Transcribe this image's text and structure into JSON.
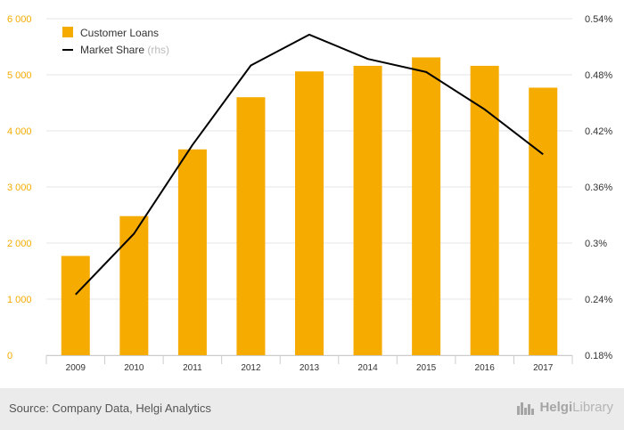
{
  "chart_data": {
    "type": "bar",
    "categories": [
      "2009",
      "2010",
      "2011",
      "2012",
      "2013",
      "2014",
      "2015",
      "2016",
      "2017"
    ],
    "series": [
      {
        "name": "Customer Loans",
        "type": "bar",
        "axis": "left",
        "color": "#f5ab00",
        "values": [
          1770,
          2480,
          3670,
          4600,
          5060,
          5160,
          5310,
          5160,
          4770
        ]
      },
      {
        "name": "Market Share",
        "type": "line",
        "axis": "right",
        "color": "#000000",
        "values": [
          0.245,
          0.31,
          0.405,
          0.49,
          0.523,
          0.497,
          0.483,
          0.443,
          0.395
        ]
      }
    ],
    "legend": {
      "items": [
        "Customer Loans",
        "Market Share"
      ],
      "market_share_suffix": "(rhs)",
      "placement": "top-left"
    },
    "y_left": {
      "min": 0,
      "max": 6000,
      "ticks": [
        0,
        1000,
        2000,
        3000,
        4000,
        5000,
        6000
      ],
      "tick_labels": [
        "0",
        "1 000",
        "2 000",
        "3 000",
        "4 000",
        "5 000",
        "6 000"
      ]
    },
    "y_right": {
      "min": 0.18,
      "max": 0.54,
      "ticks": [
        0.18,
        0.24,
        0.3,
        0.36,
        0.42,
        0.48,
        0.54
      ],
      "tick_labels": [
        "0.18%",
        "0.24%",
        "0.3%",
        "0.36%",
        "0.42%",
        "0.48%",
        "0.54%"
      ]
    },
    "grid": true,
    "title": "",
    "xlabel": "",
    "ylabel": ""
  },
  "footer": {
    "source": "Source: Company Data, Helgi Analytics",
    "brand_bold": "Helgi",
    "brand_light": "Library"
  },
  "colors": {
    "bar": "#f5ab00",
    "line": "#000000",
    "grid": "#e6e6e6",
    "left_tick": "#f5ab00",
    "right_tick": "#333333",
    "footer_bg": "#ebebeb"
  }
}
